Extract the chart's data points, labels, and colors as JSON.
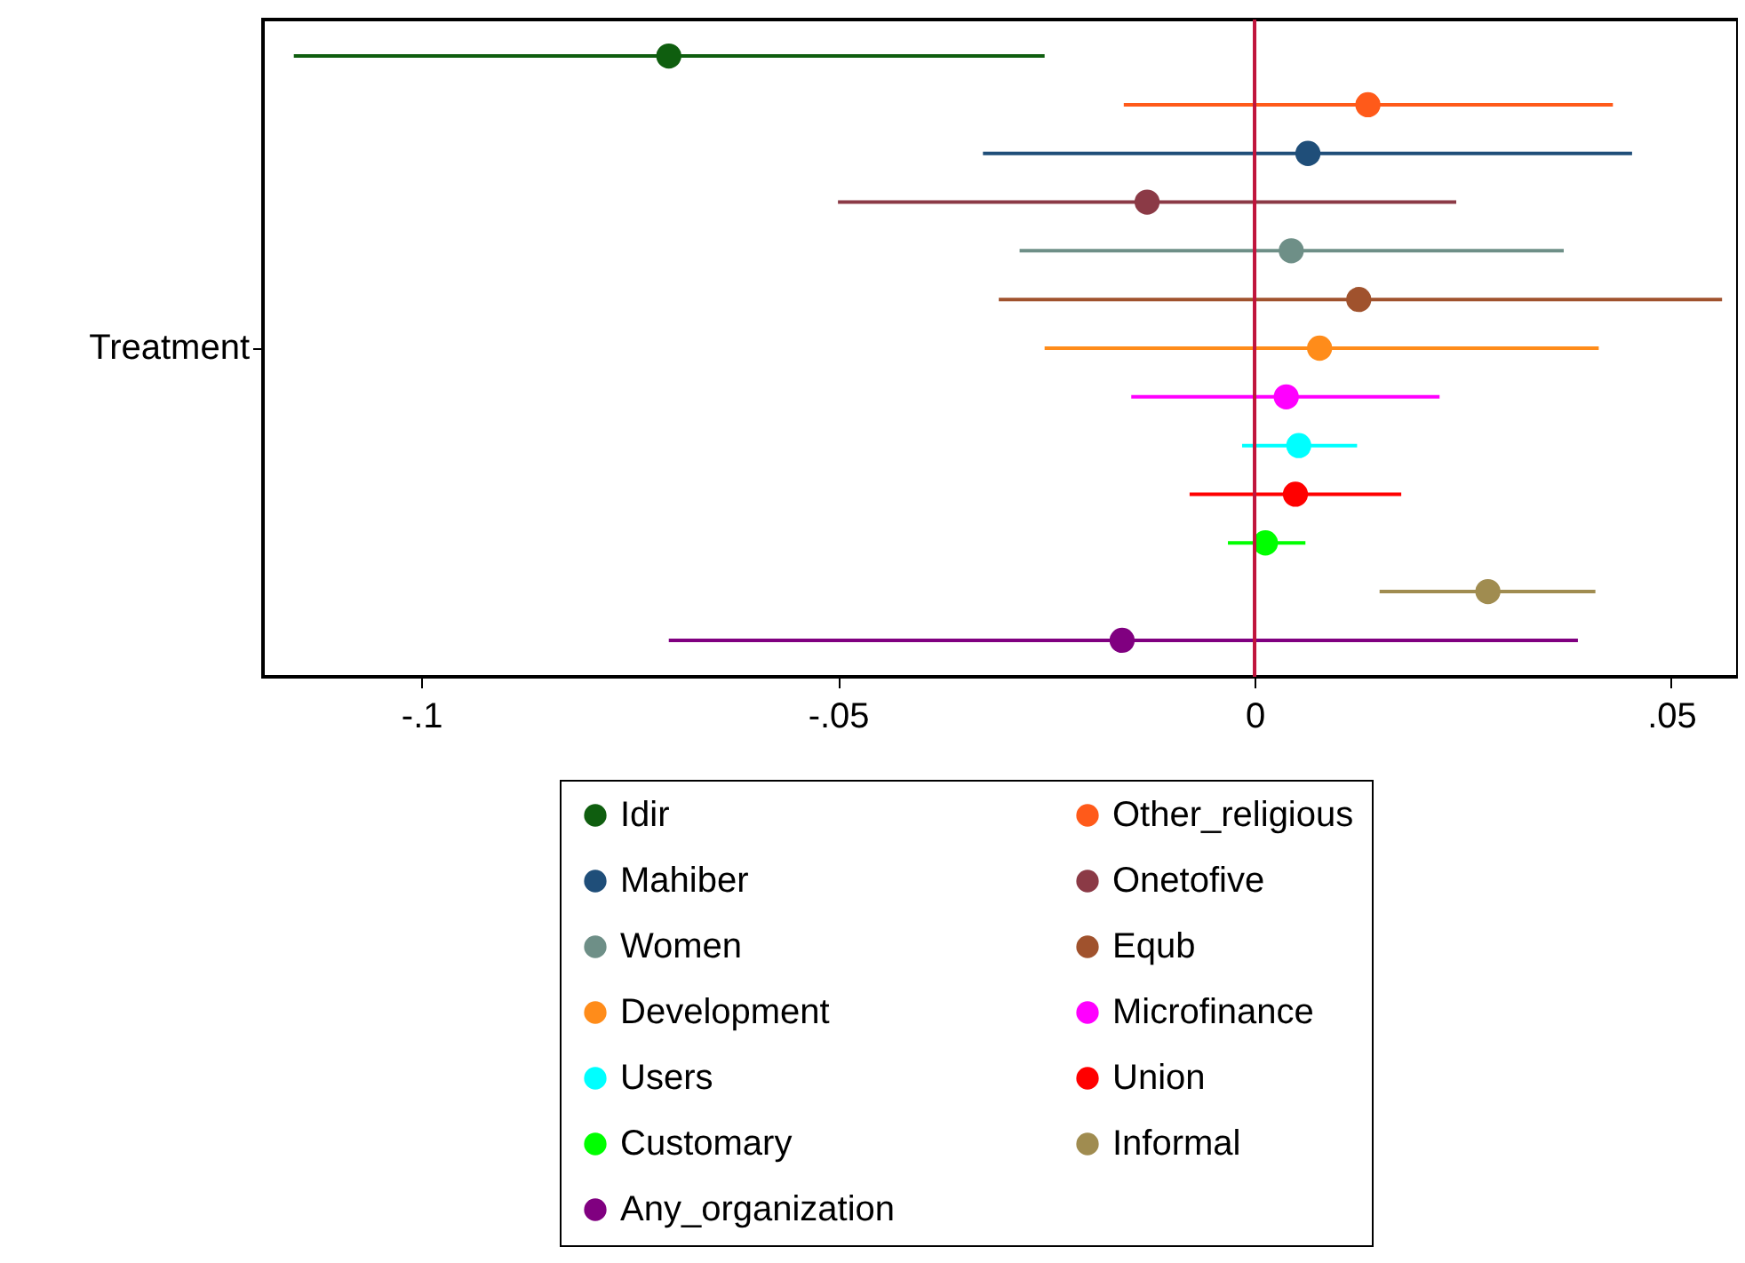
{
  "chart_data": {
    "type": "scatter",
    "orientation": "horizontal",
    "categories": [
      null,
      null,
      null,
      null,
      null,
      null,
      "Treatment",
      null,
      null,
      null,
      null,
      null,
      null
    ],
    "xlim": [
      -0.119,
      0.058
    ],
    "xticks": [
      {
        "value": -0.1,
        "label": "-.1"
      },
      {
        "value": -0.05,
        "label": "-.05"
      },
      0,
      {
        "value": 0.05,
        "label": ".05"
      }
    ],
    "grid": false,
    "legend": "bottom",
    "marker": "circle",
    "ref_lines": [
      {
        "axis": "x",
        "value": 0,
        "color": "#c0143c"
      }
    ],
    "series": [
      {
        "name": "Idir",
        "color": "#0f5e0f",
        "values": [
          -0.0703,
          null,
          null,
          null,
          null,
          null,
          null,
          null,
          null,
          null,
          null,
          null,
          null
        ],
        "errors": [
          [
            -0.1153,
            -0.0252
          ],
          null,
          null,
          null,
          null,
          null,
          null,
          null,
          null,
          null,
          null,
          null,
          null
        ]
      },
      {
        "name": "Mahiber",
        "color": "#1f4e79",
        "values": [
          null,
          null,
          0.0064,
          null,
          null,
          null,
          null,
          null,
          null,
          null,
          null,
          null,
          null
        ],
        "errors": [
          null,
          null,
          [
            -0.0326,
            0.0453
          ],
          null,
          null,
          null,
          null,
          null,
          null,
          null,
          null,
          null,
          null
        ]
      },
      {
        "name": "Women",
        "color": "#6e8f87",
        "values": [
          null,
          null,
          null,
          null,
          0.0044,
          null,
          null,
          null,
          null,
          null,
          null,
          null,
          null
        ],
        "errors": [
          null,
          null,
          null,
          null,
          [
            -0.0282,
            0.0371
          ],
          null,
          null,
          null,
          null,
          null,
          null,
          null,
          null
        ]
      },
      {
        "name": "Development",
        "color": "#ff8c1a",
        "values": [
          null,
          null,
          null,
          null,
          null,
          null,
          0.0078,
          null,
          null,
          null,
          null,
          null,
          null
        ],
        "errors": [
          null,
          null,
          null,
          null,
          null,
          null,
          [
            -0.0252,
            0.0413
          ],
          null,
          null,
          null,
          null,
          null,
          null
        ]
      },
      {
        "name": "Users",
        "color": "#00ffff",
        "values": [
          null,
          null,
          null,
          null,
          null,
          null,
          null,
          null,
          0.0053,
          null,
          null,
          null,
          null
        ],
        "errors": [
          null,
          null,
          null,
          null,
          null,
          null,
          null,
          null,
          [
            -0.0015,
            0.0123
          ],
          null,
          null,
          null,
          null
        ]
      },
      {
        "name": "Customary",
        "color": "#00ff00",
        "values": [
          null,
          null,
          null,
          null,
          null,
          null,
          null,
          null,
          null,
          null,
          0.0013,
          null,
          null
        ],
        "errors": [
          null,
          null,
          null,
          null,
          null,
          null,
          null,
          null,
          null,
          null,
          [
            -0.0032,
            0.0061
          ],
          null,
          null
        ]
      },
      {
        "name": "Any_organization",
        "color": "#800080",
        "values": [
          null,
          null,
          null,
          null,
          null,
          null,
          null,
          null,
          null,
          null,
          null,
          null,
          -0.0159
        ],
        "errors": [
          null,
          null,
          null,
          null,
          null,
          null,
          null,
          null,
          null,
          null,
          null,
          null,
          [
            -0.0703,
            0.0388
          ]
        ]
      },
      {
        "name": "Other_religious",
        "color": "#ff5a1a",
        "values": [
          null,
          0.0136,
          null,
          null,
          null,
          null,
          null,
          null,
          null,
          null,
          null,
          null,
          null
        ],
        "errors": [
          null,
          [
            -0.0157,
            0.043
          ],
          null,
          null,
          null,
          null,
          null,
          null,
          null,
          null,
          null,
          null,
          null
        ]
      },
      {
        "name": "Onetofive",
        "color": "#8b3a46",
        "values": [
          null,
          null,
          null,
          -0.0129,
          null,
          null,
          null,
          null,
          null,
          null,
          null,
          null,
          null
        ],
        "errors": [
          null,
          null,
          null,
          [
            -0.05,
            0.0242
          ],
          null,
          null,
          null,
          null,
          null,
          null,
          null,
          null,
          null
        ]
      },
      {
        "name": "Equb",
        "color": "#a0522d",
        "values": [
          null,
          null,
          null,
          null,
          null,
          0.0125,
          null,
          null,
          null,
          null,
          null,
          null,
          null
        ],
        "errors": [
          null,
          null,
          null,
          null,
          null,
          [
            -0.0307,
            0.0561
          ],
          null,
          null,
          null,
          null,
          null,
          null,
          null
        ]
      },
      {
        "name": "Microfinance",
        "color": "#ff00ff",
        "values": [
          null,
          null,
          null,
          null,
          null,
          null,
          null,
          0.0038,
          null,
          null,
          null,
          null,
          null
        ],
        "errors": [
          null,
          null,
          null,
          null,
          null,
          null,
          null,
          [
            -0.0148,
            0.0222
          ],
          null,
          null,
          null,
          null,
          null
        ]
      },
      {
        "name": "Union",
        "color": "#ff0000",
        "values": [
          null,
          null,
          null,
          null,
          null,
          null,
          null,
          null,
          null,
          0.0049,
          null,
          null,
          null
        ],
        "errors": [
          null,
          null,
          null,
          null,
          null,
          null,
          null,
          null,
          null,
          [
            -0.0078,
            0.0176
          ],
          null,
          null,
          null
        ]
      },
      {
        "name": "Informal",
        "color": "#a08c50",
        "values": [
          null,
          null,
          null,
          null,
          null,
          null,
          null,
          null,
          null,
          null,
          null,
          0.028,
          null
        ],
        "errors": [
          null,
          null,
          null,
          null,
          null,
          null,
          null,
          null,
          null,
          null,
          null,
          [
            0.015,
            0.0409
          ],
          null
        ]
      }
    ]
  }
}
